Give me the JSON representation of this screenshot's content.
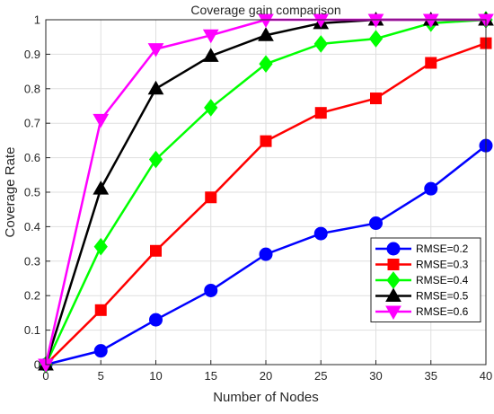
{
  "chart_data": {
    "type": "line",
    "title": "Coverage gain comparison",
    "xlabel": "Number of Nodes",
    "ylabel": "Coverage Rate",
    "xlim": [
      0,
      40
    ],
    "ylim": [
      0,
      1
    ],
    "x": [
      0,
      5,
      10,
      15,
      20,
      25,
      30,
      35,
      40
    ],
    "xticks": [
      "0",
      "5",
      "10",
      "15",
      "20",
      "25",
      "30",
      "35",
      "40"
    ],
    "yticks": [
      "0",
      "0.1",
      "0.2",
      "0.3",
      "0.4",
      "0.5",
      "0.6",
      "0.7",
      "0.8",
      "0.9",
      "1"
    ],
    "grid": true,
    "legend_position": "bottom-right",
    "series": [
      {
        "name": "RMSE=0.2",
        "color": "#0000ff",
        "marker": "circle",
        "values": [
          0,
          0.04,
          0.13,
          0.215,
          0.32,
          0.38,
          0.41,
          0.51,
          0.635
        ]
      },
      {
        "name": "RMSE=0.3",
        "color": "#ff0000",
        "marker": "square",
        "values": [
          0,
          0.158,
          0.33,
          0.485,
          0.648,
          0.73,
          0.772,
          0.875,
          0.932
        ]
      },
      {
        "name": "RMSE=0.4",
        "color": "#00ff00",
        "marker": "diamond",
        "values": [
          0,
          0.342,
          0.595,
          0.745,
          0.872,
          0.93,
          0.945,
          0.99,
          1.0
        ]
      },
      {
        "name": "RMSE=0.5",
        "color": "#000000",
        "marker": "triangle-up",
        "values": [
          0,
          0.51,
          0.8,
          0.895,
          0.955,
          0.99,
          1.0,
          1.0,
          1.0
        ]
      },
      {
        "name": "RMSE=0.6",
        "color": "#ff00ff",
        "marker": "triangle-down",
        "values": [
          0,
          0.71,
          0.915,
          0.955,
          1.0,
          1.0,
          1.0,
          1.0,
          1.0
        ]
      }
    ]
  }
}
